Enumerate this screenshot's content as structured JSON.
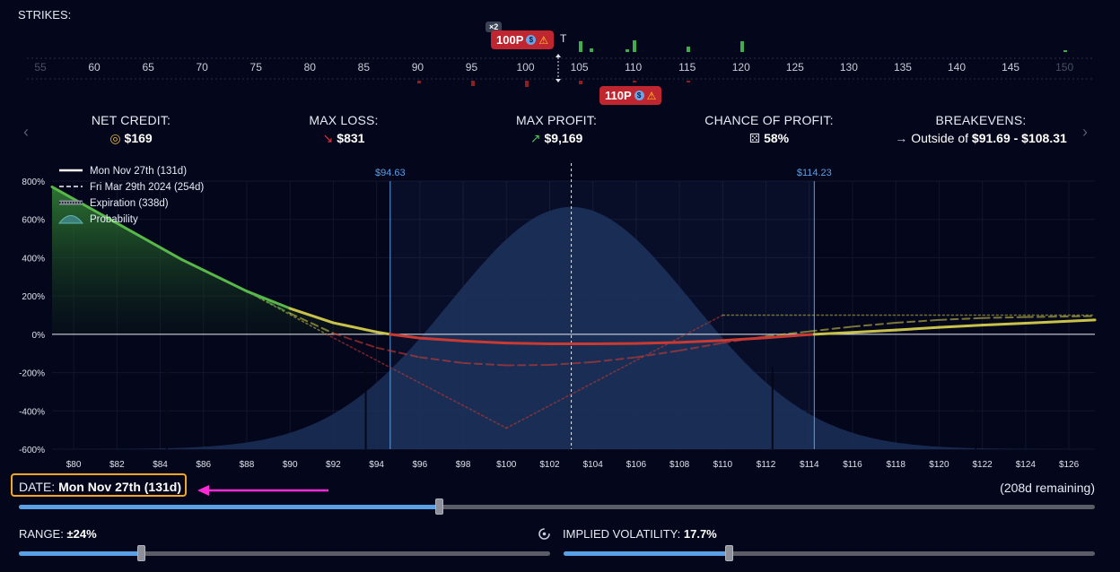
{
  "strikes": {
    "label": "STRIKES:",
    "ticks": [
      "55",
      "60",
      "65",
      "70",
      "75",
      "80",
      "85",
      "90",
      "95",
      "100",
      "105",
      "110",
      "115",
      "120",
      "125",
      "130",
      "135",
      "140",
      "145",
      "150"
    ],
    "badge_top": {
      "count": "×2",
      "label": "100P"
    },
    "badge_bottom": {
      "label": "110P"
    },
    "hidden_letter": "T"
  },
  "stats": {
    "net_credit": {
      "label": "NET CREDIT:",
      "value": "$169",
      "icon": "coins-icon"
    },
    "max_loss": {
      "label": "MAX LOSS:",
      "value": "$831",
      "icon": "arrow-down-right-icon"
    },
    "max_profit": {
      "label": "MAX PROFIT:",
      "value": "$9,169",
      "icon": "arrow-up-right-icon"
    },
    "chance": {
      "label": "CHANCE OF PROFIT:",
      "value": "58%",
      "icon": "dice-icon"
    },
    "breakevens": {
      "label": "BREAKEVENS:",
      "prefix": "Outside of",
      "value": "$91.69 - $108.31",
      "icon": "arrow-right-icon"
    }
  },
  "chart_data": {
    "type": "line",
    "legend": [
      "Mon Nov 27th (131d)",
      "Fri Mar 29th 2024 (254d)",
      "Expiration (338d)",
      "Probability"
    ],
    "yticks": [
      "800%",
      "600%",
      "400%",
      "200%",
      "0%",
      "-200%",
      "-400%",
      "-600%"
    ],
    "xticks": [
      "$80",
      "$82",
      "$84",
      "$86",
      "$88",
      "$90",
      "$92",
      "$94",
      "$96",
      "$98",
      "$100",
      "$102",
      "$104",
      "$106",
      "$108",
      "$110",
      "$112",
      "$114",
      "$116",
      "$118",
      "$120",
      "$122",
      "$124",
      "$126"
    ],
    "xlim": [
      79,
      127.2
    ],
    "ylim": [
      -600,
      800
    ],
    "markers": [
      {
        "x": 94.63,
        "label": "$94.63"
      },
      {
        "x": 114.23,
        "label": "$114.23"
      }
    ],
    "current_price": 103,
    "probability": {
      "mean": 103,
      "sd": 5.6,
      "peak": 665
    },
    "series": [
      {
        "name": "Mon Nov 27th (131d)",
        "style": "solid",
        "x": [
          79,
          82,
          85,
          88,
          90,
          92,
          94,
          94.63,
          96,
          98,
          100,
          102,
          104,
          106,
          108,
          110,
          112,
          113,
          114.23,
          116,
          118,
          120,
          122,
          124,
          127.2
        ],
        "y": [
          770,
          580,
          390,
          225,
          135,
          60,
          12,
          0,
          -20,
          -35,
          -46,
          -50,
          -50,
          -48,
          -42,
          -32,
          -18,
          -10,
          0,
          10,
          22,
          36,
          48,
          58,
          75
        ]
      },
      {
        "name": "Fri Mar 29th 2024 (254d)",
        "style": "dashed",
        "x": [
          88,
          90,
          92,
          94,
          96,
          98,
          100,
          102,
          104,
          106,
          108,
          110,
          112,
          114,
          116,
          118,
          120,
          122,
          124,
          127.2
        ],
        "y": [
          225,
          110,
          5,
          -70,
          -120,
          -150,
          -162,
          -160,
          -145,
          -120,
          -85,
          -45,
          -10,
          15,
          40,
          60,
          75,
          85,
          90,
          95
        ]
      },
      {
        "name": "Expiration (338d)",
        "style": "dotted",
        "x": [
          88,
          91.69,
          100,
          110,
          127.2
        ],
        "y": [
          225,
          0,
          -490,
          100,
          100
        ]
      }
    ]
  },
  "date": {
    "label": "DATE:",
    "value": "Mon Nov 27th (131d)",
    "remaining": "(208d remaining)",
    "fraction": 0.39
  },
  "range": {
    "label": "RANGE:",
    "value": "±24%",
    "fraction": 0.23
  },
  "iv": {
    "label": "IMPLIED VOLATILITY:",
    "value": "17.7%",
    "fraction": 0.31
  },
  "colors": {
    "accent": "#5aa0e6",
    "loss": "#c0262f",
    "profit": "#5ab84a",
    "highlight": "#f5a623",
    "arrow": "#ff2bd6"
  }
}
